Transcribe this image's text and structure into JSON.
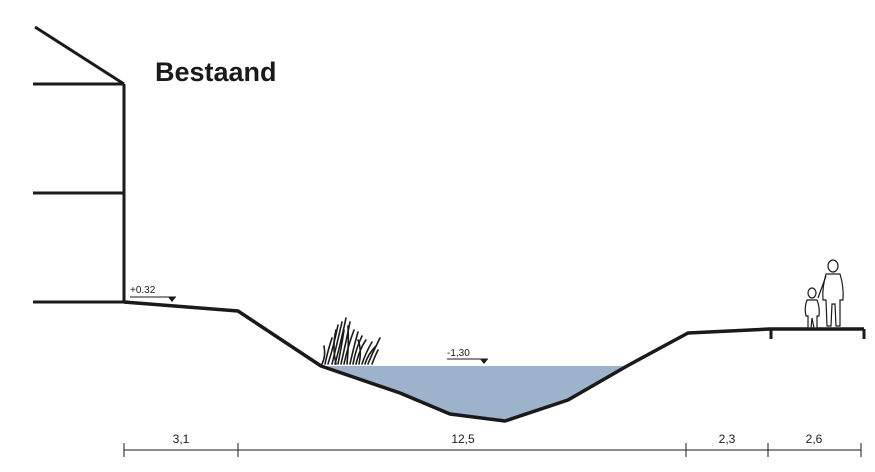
{
  "title": "Bestaand",
  "levels": {
    "ground": "+0.32",
    "water": "-1,30"
  },
  "dimensions": [
    {
      "label": "3,1"
    },
    {
      "label": "12,5"
    },
    {
      "label": "2,3"
    },
    {
      "label": "2,6"
    }
  ],
  "colors": {
    "water": "#9db3cc",
    "line": "#1a1a1a"
  },
  "icons": [
    "house-outline",
    "reed-plants",
    "pedestrian-adult-icon",
    "pedestrian-child-icon"
  ]
}
